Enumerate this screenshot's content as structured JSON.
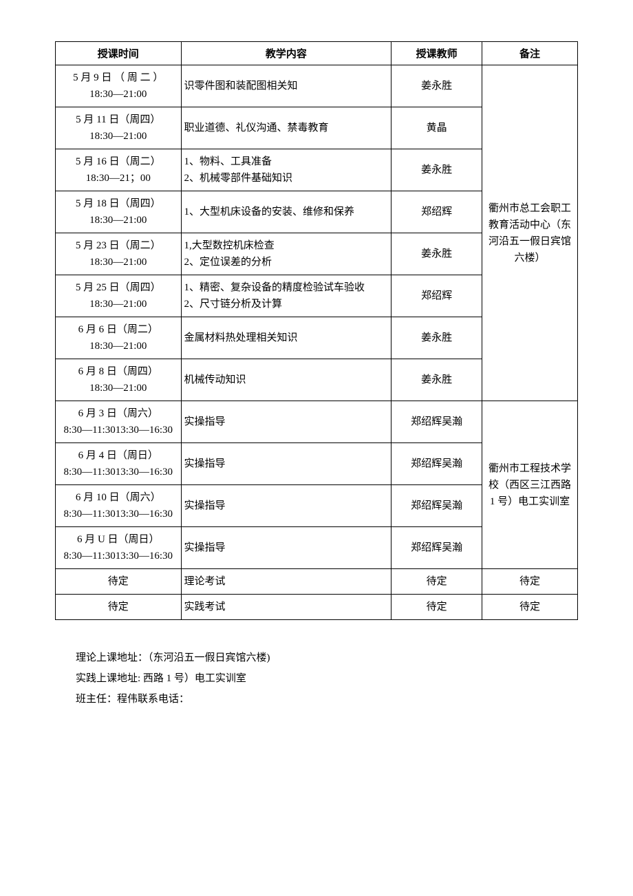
{
  "table": {
    "headers": {
      "time": "授课时间",
      "content": "教学内容",
      "teacher": "授课教师",
      "remark": "备注"
    },
    "rows": [
      {
        "time": [
          "5 月 9 日 （ 周 二 ）",
          "18:30—21:00"
        ],
        "content": [
          "识零件图和装配图相关知"
        ],
        "teacher": "姜永胜",
        "group": 0
      },
      {
        "time": [
          "5 月 11 日（周四）",
          "18:30—21:00"
        ],
        "content": [
          "职业道德、礼仪沟通、禁毒教育"
        ],
        "teacher": "黄晶",
        "group": 0
      },
      {
        "time": [
          "5 月 16 日（周二）",
          "18:30—21；00"
        ],
        "content": [
          "1、物料、工具准备",
          "2、机械零部件基础知识"
        ],
        "teacher": "姜永胜",
        "group": 0
      },
      {
        "time": [
          "5 月 18 日（周四）",
          "18:30—21:00"
        ],
        "content": [
          "1、大型机床设备的安装、维修和保养"
        ],
        "teacher": "郑绍辉",
        "group": 0
      },
      {
        "time": [
          "5 月 23 日（周二）",
          "18:30—21:00"
        ],
        "content": [
          "1,大型数控机床检查",
          "2、定位误差的分析"
        ],
        "teacher": "姜永胜",
        "group": 0
      },
      {
        "time": [
          "5 月 25 日（周四）",
          "18:30—21:00"
        ],
        "content": [
          "1、精密、复杂设备的精度检验试车验收",
          "2、尺寸链分析及计算"
        ],
        "teacher": "郑绍辉",
        "group": 0
      },
      {
        "time": [
          "6 月 6 日（周二）",
          "18:30—21:00"
        ],
        "content": [
          "金属材料热处理相关知识"
        ],
        "teacher": "姜永胜",
        "group": 0
      },
      {
        "time": [
          "6 月 8 日（周四）",
          "18:30—21:00"
        ],
        "content": [
          "机械传动知识"
        ],
        "teacher": "姜永胜",
        "group": 0
      },
      {
        "time": [
          "6 月 3 日（周六）",
          "8:30—11:3013:30—16:30"
        ],
        "content": [
          "实操指导"
        ],
        "teacher": "郑绍辉吴瀚",
        "group": 1
      },
      {
        "time": [
          "6 月 4 日（周日）",
          "8:30—11:3013:30—16:30"
        ],
        "content": [
          "实操指导"
        ],
        "teacher": "郑绍辉吴瀚",
        "group": 1
      },
      {
        "time": [
          "6 月 10 日（周六）",
          "8:30—11:3013:30—16:30"
        ],
        "content": [
          "实操指导"
        ],
        "teacher": "郑绍辉吴瀚",
        "group": 1
      },
      {
        "time": [
          "6 月 U 日（周日）",
          "8:30—11:3013:30—16:30"
        ],
        "content": [
          "实操指导"
        ],
        "teacher": "郑绍辉吴瀚",
        "group": 1
      },
      {
        "time": [
          "待定"
        ],
        "content": [
          "理论考试"
        ],
        "teacher": "待定",
        "remark": "待定",
        "group": -1
      },
      {
        "time": [
          "待定"
        ],
        "content": [
          "实践考试"
        ],
        "teacher": "待定",
        "remark": "待定",
        "group": -1
      }
    ],
    "remark_groups": [
      {
        "text": "衢州市总工会职工教育活动中心（东河沿五一假日宾馆六楼）",
        "span": 8
      },
      {
        "text": "衢州市工程技术学校（西区三江西路 1 号）电工实训室",
        "span": 4
      }
    ]
  },
  "footer": {
    "line1": "理论上课地址：（东河沿五一假日宾馆六楼)",
    "line2": "实践上课地址: 西路 1 号）电工实训室",
    "line3": "班主任：程伟联系电话："
  }
}
